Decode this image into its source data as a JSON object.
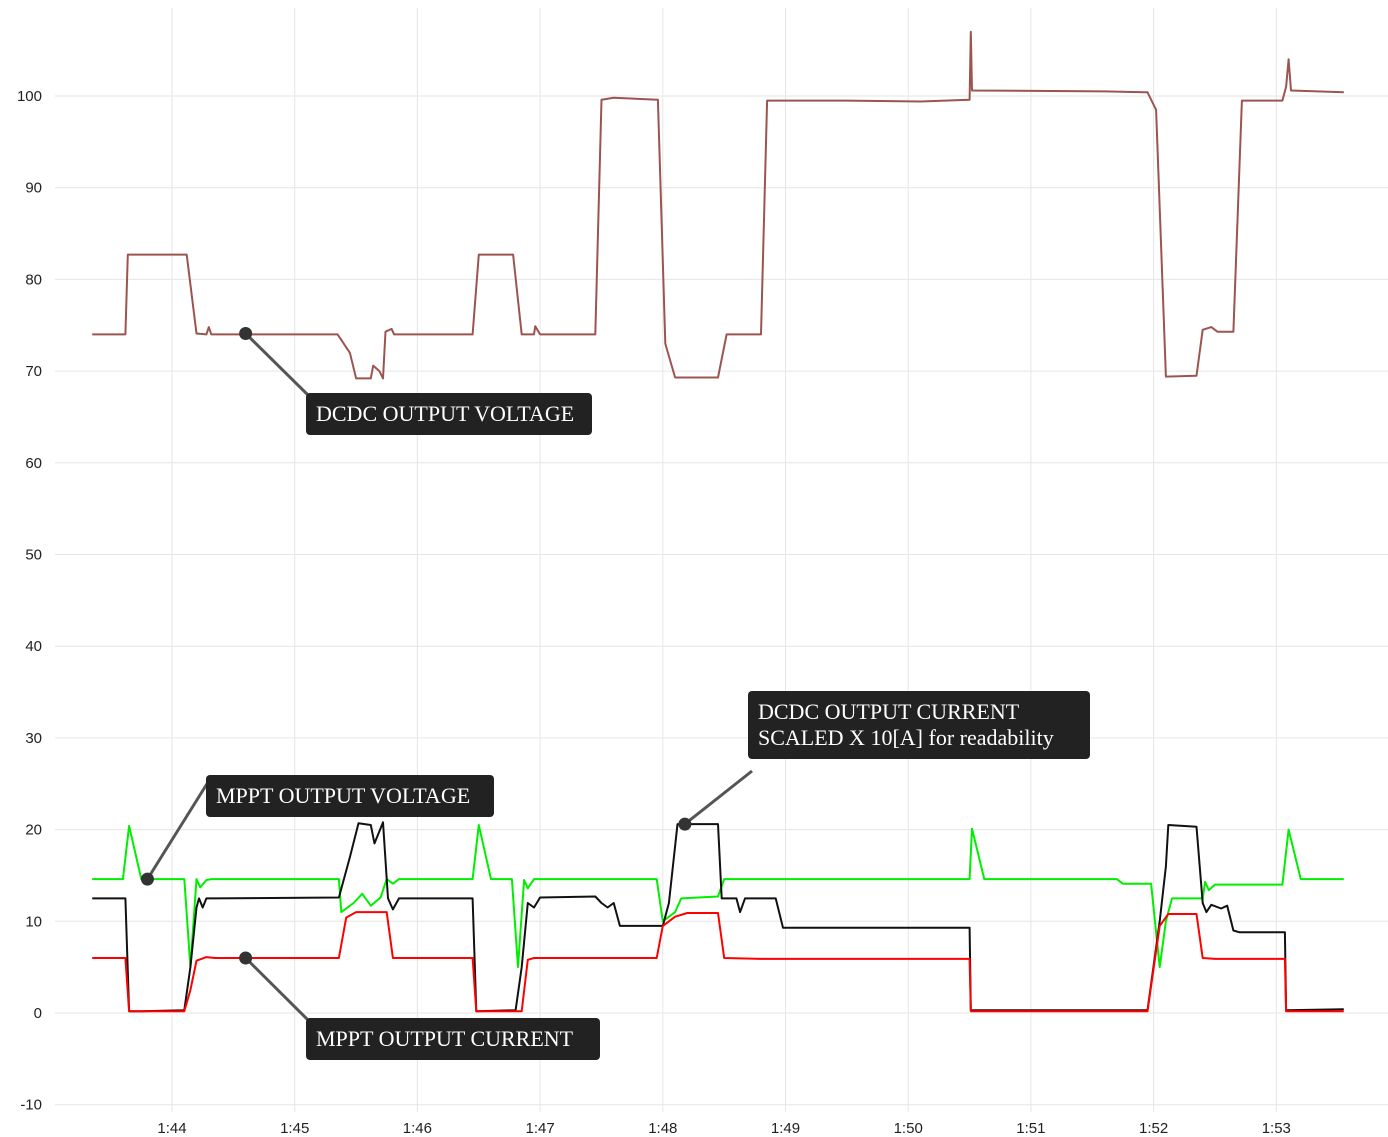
{
  "chart_data": {
    "type": "line",
    "x_unit": "minutes",
    "xlim": [
      103.3,
      113.6
    ],
    "ylim": [
      -10,
      108
    ],
    "y_ticks": [
      -10,
      0,
      10,
      20,
      30,
      40,
      50,
      60,
      70,
      80,
      90,
      100
    ],
    "x_ticks": [
      {
        "value": 104,
        "label": "1:44"
      },
      {
        "value": 105,
        "label": "1:45"
      },
      {
        "value": 106,
        "label": "1:46"
      },
      {
        "value": 107,
        "label": "1:47"
      },
      {
        "value": 108,
        "label": "1:48"
      },
      {
        "value": 109,
        "label": "1:49"
      },
      {
        "value": 110,
        "label": "1:50"
      },
      {
        "value": 111,
        "label": "1:51"
      },
      {
        "value": 112,
        "label": "1:52"
      },
      {
        "value": 113,
        "label": "1:53"
      }
    ],
    "grid": true,
    "series": [
      {
        "name": "DCDC OUTPUT VOLTAGE",
        "color": "#9c5450",
        "points": [
          [
            103.35,
            74
          ],
          [
            103.62,
            74
          ],
          [
            103.64,
            82.7
          ],
          [
            103.75,
            82.7
          ],
          [
            104.12,
            82.7
          ],
          [
            104.2,
            74.1
          ],
          [
            104.28,
            74
          ],
          [
            104.3,
            74.8
          ],
          [
            104.32,
            74
          ],
          [
            105.35,
            74
          ],
          [
            105.45,
            72
          ],
          [
            105.5,
            69.2
          ],
          [
            105.62,
            69.2
          ],
          [
            105.64,
            70.6
          ],
          [
            105.69,
            70
          ],
          [
            105.72,
            69.2
          ],
          [
            105.74,
            74.3
          ],
          [
            105.79,
            74.6
          ],
          [
            105.81,
            74
          ],
          [
            106.45,
            74
          ],
          [
            106.5,
            82.7
          ],
          [
            106.78,
            82.7
          ],
          [
            106.85,
            74
          ],
          [
            106.95,
            74
          ],
          [
            106.96,
            74.9
          ],
          [
            107,
            74
          ],
          [
            107.45,
            74
          ],
          [
            107.5,
            99.6
          ],
          [
            107.6,
            99.8
          ],
          [
            107.96,
            99.6
          ],
          [
            108.02,
            73
          ],
          [
            108.1,
            69.3
          ],
          [
            108.45,
            69.3
          ],
          [
            108.52,
            74
          ],
          [
            108.8,
            74
          ],
          [
            108.85,
            99.5
          ],
          [
            109.5,
            99.5
          ],
          [
            110.1,
            99.4
          ],
          [
            110.5,
            99.6
          ],
          [
            110.51,
            107
          ],
          [
            110.52,
            100.6
          ],
          [
            111.6,
            100.5
          ],
          [
            111.95,
            100.4
          ],
          [
            112.02,
            98.5
          ],
          [
            112.1,
            69.4
          ],
          [
            112.35,
            69.5
          ],
          [
            112.4,
            74.5
          ],
          [
            112.47,
            74.8
          ],
          [
            112.52,
            74.3
          ],
          [
            112.65,
            74.3
          ],
          [
            112.72,
            99.5
          ],
          [
            113.05,
            99.5
          ],
          [
            113.08,
            101
          ],
          [
            113.1,
            104
          ],
          [
            113.12,
            100.6
          ],
          [
            113.55,
            100.4
          ]
        ]
      },
      {
        "name": "MPPT OUTPUT VOLTAGE",
        "color": "#00ee00",
        "points": [
          [
            103.35,
            14.6
          ],
          [
            103.6,
            14.6
          ],
          [
            103.65,
            20.4
          ],
          [
            103.75,
            14.6
          ],
          [
            104.1,
            14.6
          ],
          [
            104.15,
            5
          ],
          [
            104.2,
            14.6
          ],
          [
            104.23,
            13.7
          ],
          [
            104.28,
            14.5
          ],
          [
            104.32,
            14.6
          ],
          [
            105.36,
            14.6
          ],
          [
            105.38,
            11
          ],
          [
            105.48,
            12
          ],
          [
            105.55,
            13
          ],
          [
            105.62,
            11.7
          ],
          [
            105.7,
            12.6
          ],
          [
            105.75,
            14.6
          ],
          [
            105.8,
            14.1
          ],
          [
            105.85,
            14.6
          ],
          [
            106.45,
            14.6
          ],
          [
            106.5,
            20.5
          ],
          [
            106.6,
            14.6
          ],
          [
            106.77,
            14.6
          ],
          [
            106.82,
            5
          ],
          [
            106.87,
            14.5
          ],
          [
            106.9,
            13.6
          ],
          [
            106.95,
            14.6
          ],
          [
            107.95,
            14.6
          ],
          [
            108,
            10
          ],
          [
            108.1,
            11
          ],
          [
            108.15,
            12.5
          ],
          [
            108.45,
            12.7
          ],
          [
            108.5,
            14.6
          ],
          [
            110.5,
            14.6
          ],
          [
            110.52,
            20.1
          ],
          [
            110.62,
            14.6
          ],
          [
            111.7,
            14.6
          ],
          [
            111.75,
            14.1
          ],
          [
            111.98,
            14.1
          ],
          [
            112.05,
            5
          ],
          [
            112.1,
            10
          ],
          [
            112.15,
            12.5
          ],
          [
            112.4,
            12.5
          ],
          [
            112.42,
            14.3
          ],
          [
            112.45,
            13.4
          ],
          [
            112.5,
            14
          ],
          [
            113.05,
            14
          ],
          [
            113.1,
            20
          ],
          [
            113.2,
            14.6
          ],
          [
            113.55,
            14.6
          ]
        ]
      },
      {
        "name": "DCDC OUTPUT CURRENT SCALED X 10[A] for readability",
        "color": "#111111",
        "points": [
          [
            103.35,
            12.5
          ],
          [
            103.62,
            12.5
          ],
          [
            103.65,
            0.2
          ],
          [
            103.75,
            0.2
          ],
          [
            104.1,
            0.3
          ],
          [
            104.15,
            5
          ],
          [
            104.2,
            11.5
          ],
          [
            104.22,
            12.5
          ],
          [
            104.25,
            11.5
          ],
          [
            104.28,
            12.5
          ],
          [
            104.33,
            12.5
          ],
          [
            105.36,
            12.6
          ],
          [
            105.45,
            17
          ],
          [
            105.52,
            20.7
          ],
          [
            105.62,
            20.5
          ],
          [
            105.65,
            18.5
          ],
          [
            105.72,
            20.8
          ],
          [
            105.76,
            12.5
          ],
          [
            105.8,
            11.3
          ],
          [
            105.85,
            12.5
          ],
          [
            106.45,
            12.5
          ],
          [
            106.48,
            0.2
          ],
          [
            106.8,
            0.3
          ],
          [
            106.85,
            5
          ],
          [
            106.9,
            12
          ],
          [
            106.95,
            11.5
          ],
          [
            107,
            12.6
          ],
          [
            107.45,
            12.7
          ],
          [
            107.5,
            12
          ],
          [
            107.55,
            11.5
          ],
          [
            107.6,
            12
          ],
          [
            107.65,
            9.5
          ],
          [
            108,
            9.5
          ],
          [
            108.05,
            12
          ],
          [
            108.12,
            20.6
          ],
          [
            108.45,
            20.6
          ],
          [
            108.48,
            12.5
          ],
          [
            108.6,
            12.5
          ],
          [
            108.63,
            11
          ],
          [
            108.67,
            12.5
          ],
          [
            108.92,
            12.5
          ],
          [
            108.98,
            9.3
          ],
          [
            110.1,
            9.3
          ],
          [
            110.5,
            9.3
          ],
          [
            110.51,
            0.3
          ],
          [
            111.95,
            0.3
          ],
          [
            112.05,
            10
          ],
          [
            112.1,
            16
          ],
          [
            112.12,
            20.5
          ],
          [
            112.35,
            20.3
          ],
          [
            112.4,
            12
          ],
          [
            112.43,
            11
          ],
          [
            112.47,
            11.8
          ],
          [
            112.55,
            11.4
          ],
          [
            112.6,
            11.7
          ],
          [
            112.65,
            9
          ],
          [
            112.7,
            8.8
          ],
          [
            113.07,
            8.8
          ],
          [
            113.08,
            0.3
          ],
          [
            113.55,
            0.4
          ]
        ]
      },
      {
        "name": "MPPT OUTPUT CURRENT",
        "color": "#ff0000",
        "points": [
          [
            103.35,
            6
          ],
          [
            103.62,
            6
          ],
          [
            103.65,
            0.2
          ],
          [
            104.1,
            0.2
          ],
          [
            104.15,
            2.5
          ],
          [
            104.2,
            5.7
          ],
          [
            104.28,
            6.1
          ],
          [
            104.35,
            6
          ],
          [
            105.36,
            6
          ],
          [
            105.42,
            10.4
          ],
          [
            105.5,
            11
          ],
          [
            105.75,
            11
          ],
          [
            105.8,
            6
          ],
          [
            105.9,
            6
          ],
          [
            106.45,
            6
          ],
          [
            106.48,
            0.2
          ],
          [
            106.85,
            0.2
          ],
          [
            106.9,
            5.8
          ],
          [
            106.95,
            6
          ],
          [
            107.95,
            6
          ],
          [
            108,
            9.5
          ],
          [
            108.1,
            10.5
          ],
          [
            108.2,
            10.9
          ],
          [
            108.45,
            10.9
          ],
          [
            108.5,
            6
          ],
          [
            108.8,
            5.9
          ],
          [
            110.5,
            5.9
          ],
          [
            110.51,
            0.2
          ],
          [
            111.95,
            0.2
          ],
          [
            112.05,
            9.5
          ],
          [
            112.12,
            10.8
          ],
          [
            112.35,
            10.8
          ],
          [
            112.4,
            6
          ],
          [
            112.5,
            5.9
          ],
          [
            113.07,
            5.9
          ],
          [
            113.08,
            0.2
          ],
          [
            113.55,
            0.2
          ]
        ]
      }
    ],
    "annotations": [
      {
        "text": "DCDC OUTPUT VOLTAGE",
        "series": 0,
        "x": 104.6,
        "y": 74.1
      },
      {
        "text": "MPPT OUTPUT VOLTAGE",
        "series": 1,
        "x": 103.8,
        "y": 14.6
      },
      {
        "text": "DCDC OUTPUT CURRENT\nSCALED X 10[A] for readability",
        "series": 2,
        "x": 108.18,
        "y": 20.6
      },
      {
        "text": "MPPT OUTPUT CURRENT",
        "series": 3,
        "x": 104.6,
        "y": 6.0
      }
    ]
  }
}
